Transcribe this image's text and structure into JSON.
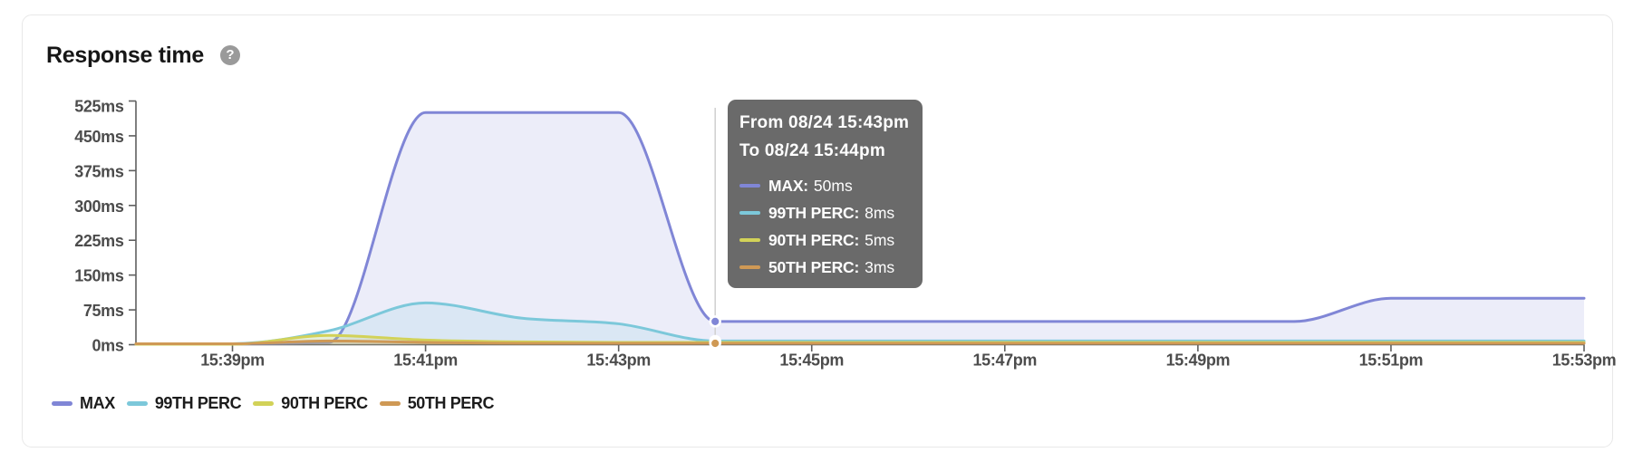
{
  "card": {
    "title": "Response time",
    "help_icon": "?"
  },
  "chart_data": {
    "type": "area",
    "title": "Response time",
    "x": [
      "15:38",
      "15:39",
      "15:40",
      "15:41",
      "15:42",
      "15:43",
      "15:44",
      "15:45",
      "15:46",
      "15:47",
      "15:48",
      "15:49",
      "15:50",
      "15:51",
      "15:52",
      "15:53"
    ],
    "x_tick_labels": [
      "15:39pm",
      "15:41pm",
      "15:43pm",
      "15:45pm",
      "15:47pm",
      "15:49pm",
      "15:51pm",
      "15:53pm"
    ],
    "x_ticks_at": [
      "15:39",
      "15:41",
      "15:43",
      "15:45",
      "15:47",
      "15:49",
      "15:51",
      "15:53"
    ],
    "y_ticks": [
      0,
      75,
      150,
      225,
      300,
      375,
      450,
      525
    ],
    "y_tick_labels": [
      "0ms",
      "75ms",
      "150ms",
      "225ms",
      "300ms",
      "375ms",
      "450ms",
      "525ms"
    ],
    "ylim": [
      0,
      525
    ],
    "y_unit": "ms",
    "grid": false,
    "legend_position": "bottom-left",
    "series": [
      {
        "name": "MAX",
        "color": "#8086d6",
        "values": [
          2,
          2,
          5,
          500,
          500,
          500,
          50,
          50,
          50,
          50,
          50,
          50,
          50,
          100,
          100,
          100
        ]
      },
      {
        "name": "99TH PERC",
        "color": "#7cc8da",
        "values": [
          1,
          2,
          30,
          90,
          57,
          45,
          8,
          8,
          8,
          8,
          8,
          8,
          8,
          8,
          8,
          8
        ]
      },
      {
        "name": "90TH PERC",
        "color": "#d2d258",
        "values": [
          1,
          1,
          20,
          10,
          6,
          5,
          5,
          5,
          5,
          5,
          5,
          5,
          5,
          5,
          5,
          5
        ]
      },
      {
        "name": "50TH PERC",
        "color": "#cf9955",
        "values": [
          2,
          2,
          8,
          5,
          3,
          3,
          3,
          3,
          3,
          3,
          3,
          3,
          3,
          3,
          3,
          3
        ]
      }
    ]
  },
  "tooltip": {
    "from_label": "From 08/24 15:43pm",
    "to_label": "To 08/24 15:44pm",
    "hover_x": "15:44",
    "rows": [
      {
        "label": "MAX",
        "value": "50ms",
        "color": "#8086d6"
      },
      {
        "label": "99TH PERC",
        "value": "8ms",
        "color": "#7cc8da"
      },
      {
        "label": "90TH PERC",
        "value": "5ms",
        "color": "#d2d258"
      },
      {
        "label": "50TH PERC",
        "value": "3ms",
        "color": "#cf9955"
      }
    ]
  },
  "legend": {
    "items": [
      {
        "label": "MAX",
        "color": "#8086d6"
      },
      {
        "label": "99TH PERC",
        "color": "#7cc8da"
      },
      {
        "label": "90TH PERC",
        "color": "#d2d258"
      },
      {
        "label": "50TH PERC",
        "color": "#cf9955"
      }
    ]
  }
}
